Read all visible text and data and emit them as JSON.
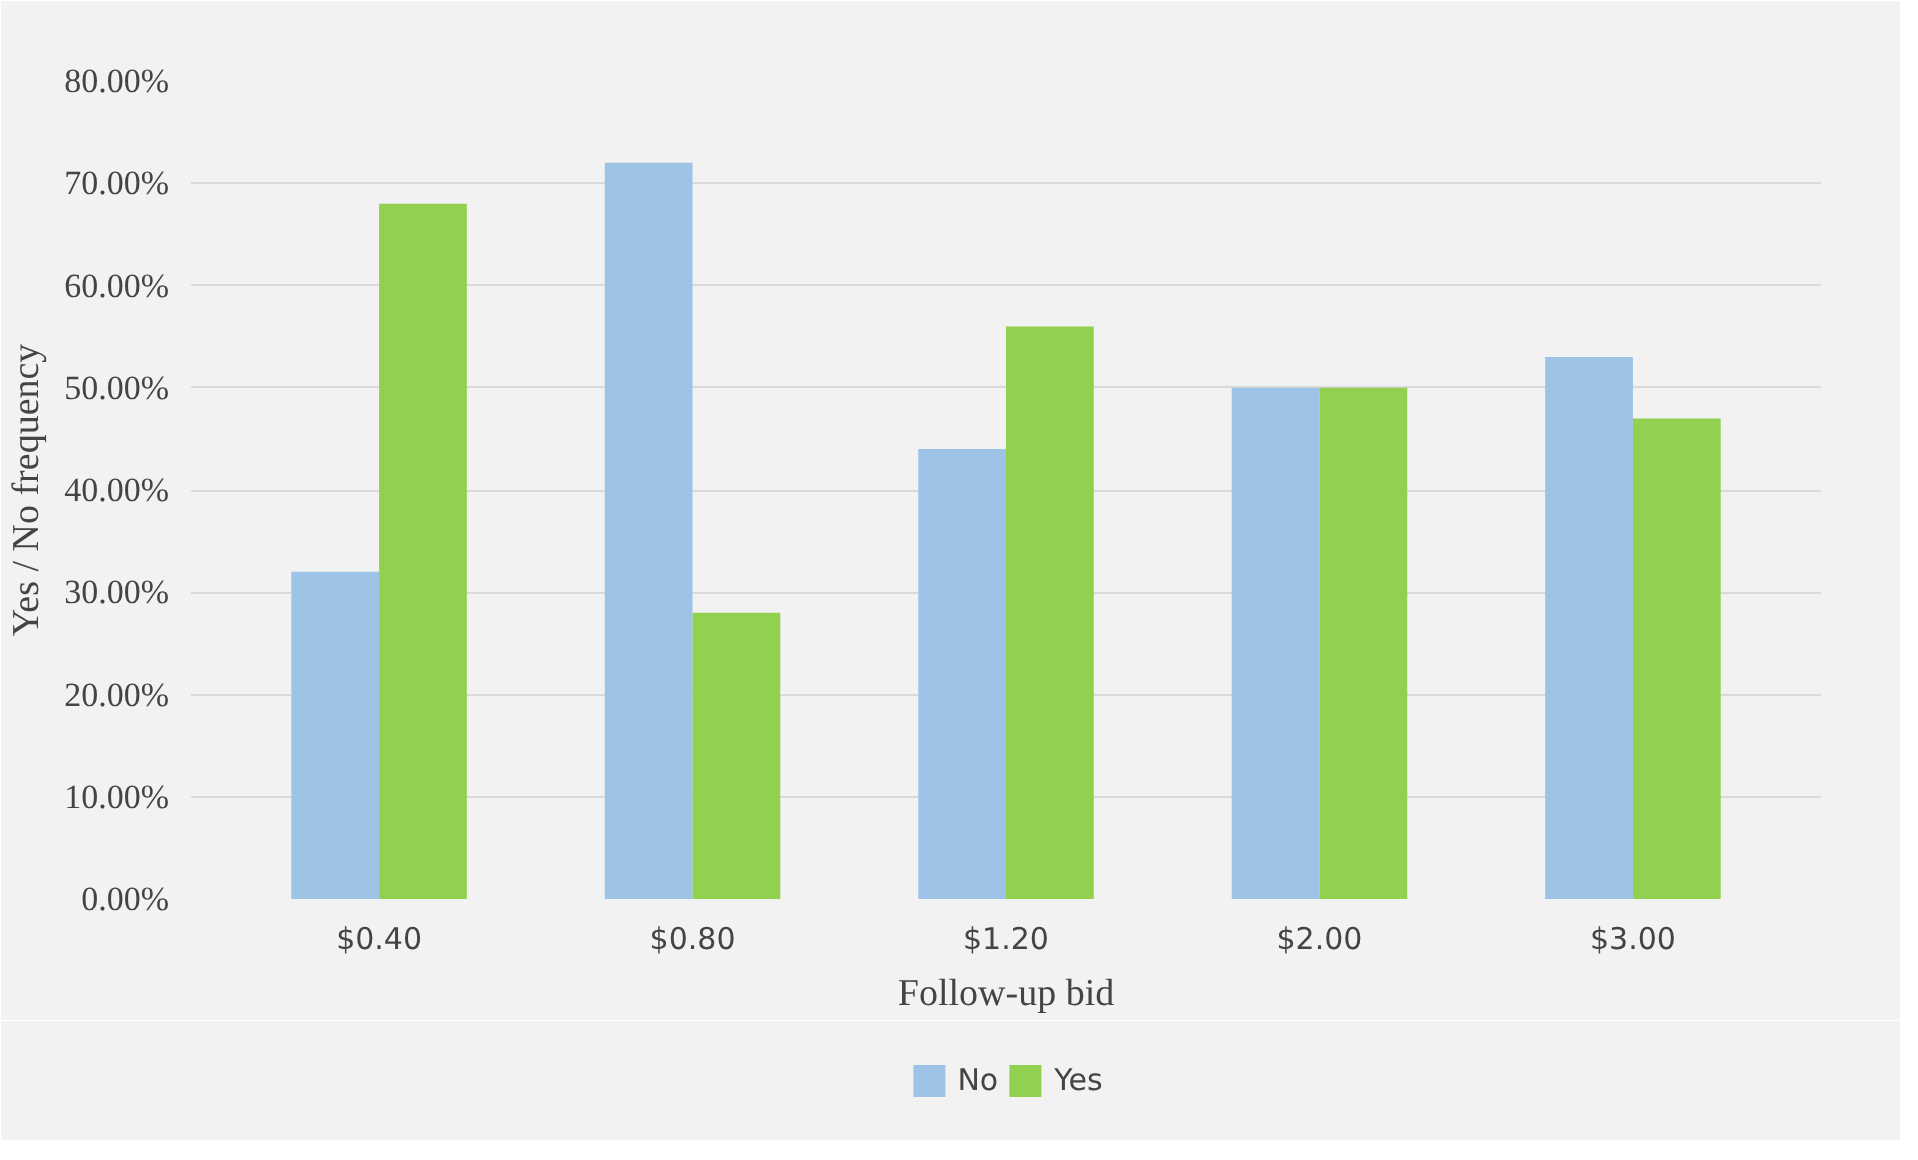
{
  "chart_data": {
    "type": "bar",
    "xlabel": "Follow-up bid",
    "ylabel": "Yes / No frequency",
    "categories": [
      "$0.40",
      "$0.80",
      "$1.20",
      "$2.00",
      "$3.00"
    ],
    "series": [
      {
        "name": "No",
        "color": "#9dc3e6",
        "values": [
          32,
          72,
          44,
          50,
          53
        ]
      },
      {
        "name": "Yes",
        "color": "#92d050",
        "values": [
          68,
          28,
          56,
          50,
          47
        ]
      }
    ],
    "ylim": [
      0,
      80
    ],
    "yticks": [
      {
        "value": 0,
        "label": "0.00%"
      },
      {
        "value": 10,
        "label": "10.00%"
      },
      {
        "value": 20,
        "label": "20.00%"
      },
      {
        "value": 30,
        "label": "30.00%"
      },
      {
        "value": 40,
        "label": "40.00%"
      },
      {
        "value": 50,
        "label": "50.00%"
      },
      {
        "value": 60,
        "label": "60.00%"
      },
      {
        "value": 70,
        "label": "70.00%"
      },
      {
        "value": 80,
        "label": "80.00%"
      }
    ],
    "grid": "y",
    "legend": "bottom"
  }
}
